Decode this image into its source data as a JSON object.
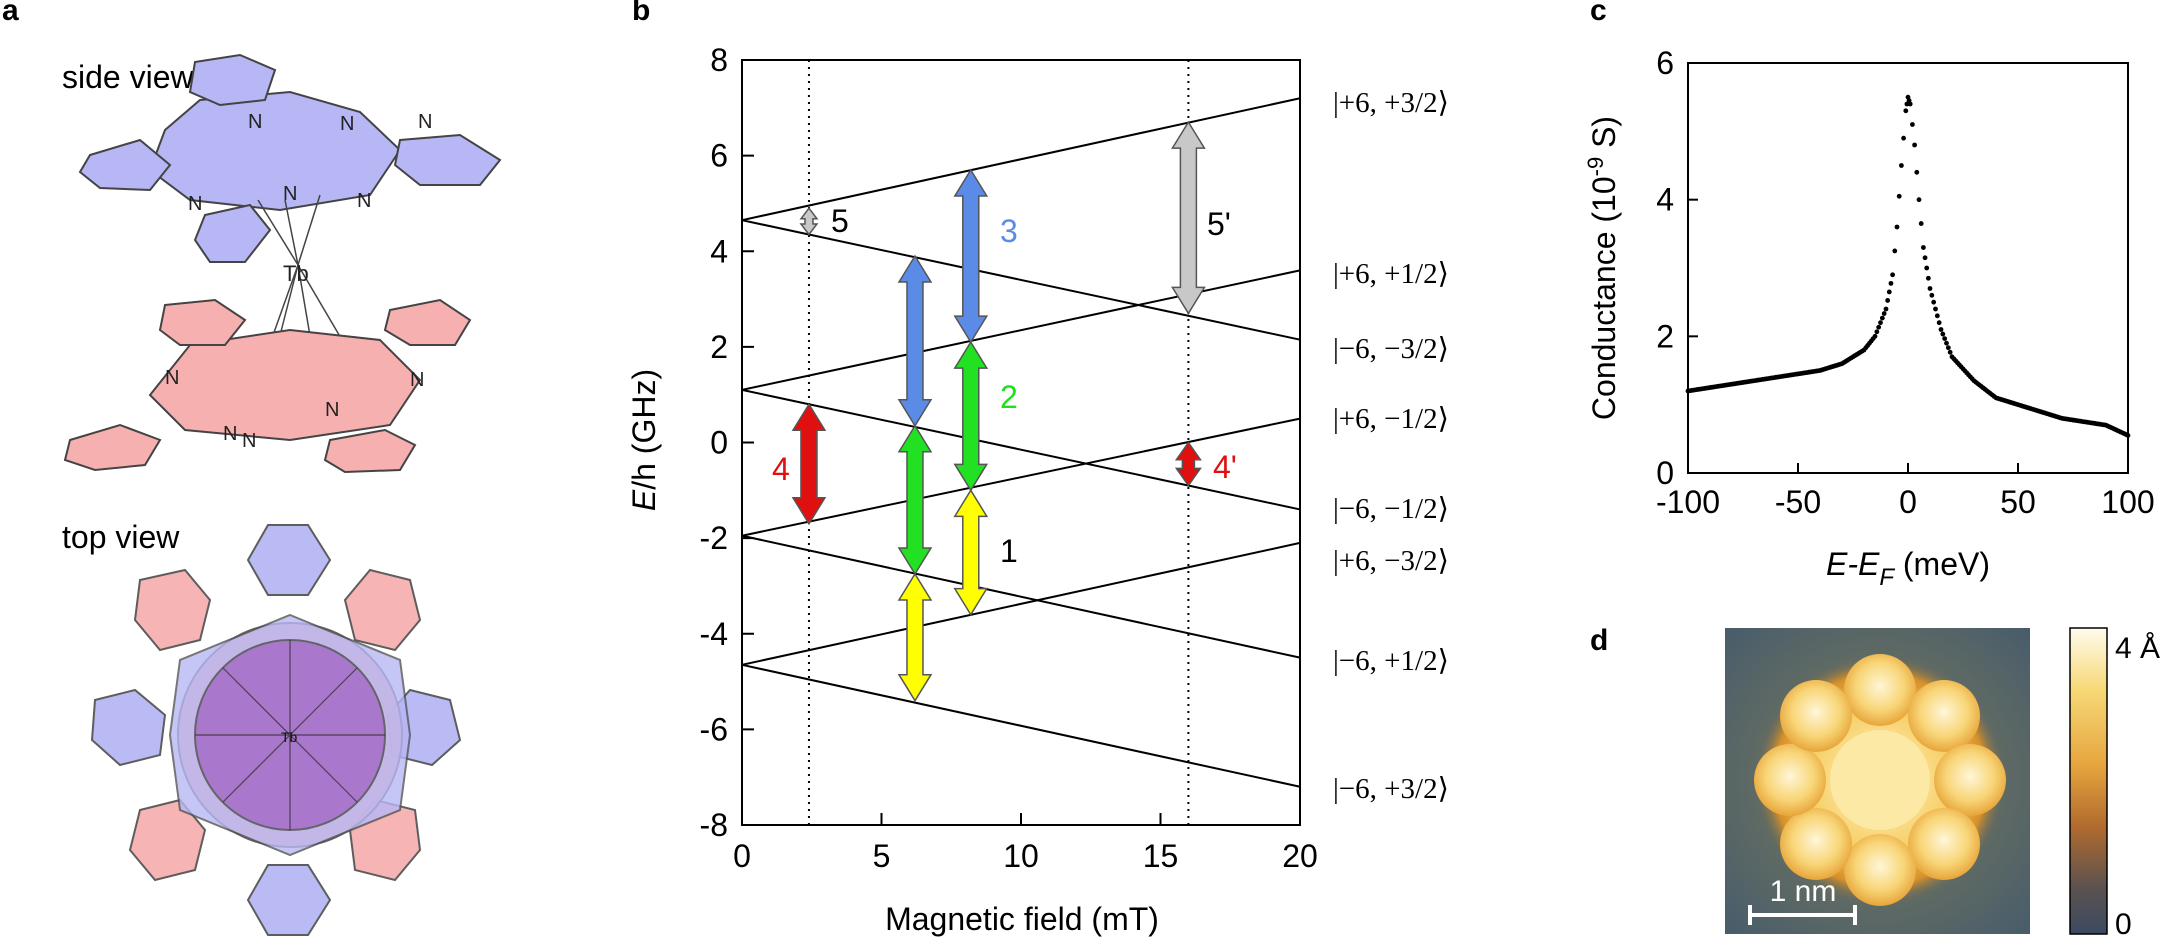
{
  "panel_labels": {
    "a": "a",
    "b": "b",
    "c": "c",
    "d": "d"
  },
  "panel_a": {
    "side_view_label": "side view",
    "top_view_label": "top view",
    "metal_label": "Tb",
    "nitrogen_label": "N",
    "colors": {
      "upper_ring": "#b7b7f5",
      "lower_ring": "#f7b0b0",
      "overlap": "#a56ec8"
    }
  },
  "panel_b": {
    "ylabel_italic": "E",
    "ylabel_rest": "/h (GHz)",
    "xlabel": "Magnetic field (mT)",
    "state_labels": [
      "|+6, +3/2⟩",
      "|+6, +1/2⟩",
      "|−6, −3/2⟩",
      "|+6, −1/2⟩",
      "|−6, −1/2⟩",
      "|+6, −3/2⟩",
      "|−6, +1/2⟩",
      "|−6, +3/2⟩"
    ],
    "transition_labels": [
      {
        "text": "1",
        "color": "#000000"
      },
      {
        "text": "2",
        "color": "#1ee01e"
      },
      {
        "text": "3",
        "color": "#5a8be6"
      },
      {
        "text": "4",
        "color": "#e01010"
      },
      {
        "text": "5",
        "color": "#000000"
      },
      {
        "text": "5'",
        "color": "#000000"
      },
      {
        "text": "4'",
        "color": "#e01010"
      }
    ]
  },
  "chart_data": [
    {
      "type": "line",
      "title": "",
      "xlabel": "Magnetic field (mT)",
      "ylabel": "E/h (GHz)",
      "xlim": [
        0,
        20
      ],
      "ylim": [
        -8,
        8
      ],
      "xticks": [
        0,
        5,
        10,
        15,
        20
      ],
      "yticks": [
        -8,
        -6,
        -4,
        -2,
        0,
        2,
        4,
        6,
        8
      ],
      "series": [
        {
          "name": "|+6, +3/2⟩",
          "x": [
            0,
            20
          ],
          "y": [
            4.65,
            7.2
          ]
        },
        {
          "name": "|+6, +1/2⟩",
          "x": [
            0,
            20
          ],
          "y": [
            1.1,
            3.6
          ]
        },
        {
          "name": "|−6, −3/2⟩",
          "x": [
            0,
            20
          ],
          "y": [
            4.65,
            2.15
          ]
        },
        {
          "name": "|+6, −1/2⟩",
          "x": [
            0,
            20
          ],
          "y": [
            -1.95,
            0.5
          ]
        },
        {
          "name": "|−6, −1/2⟩",
          "x": [
            0,
            20
          ],
          "y": [
            1.1,
            -1.4
          ]
        },
        {
          "name": "|+6, −3/2⟩",
          "x": [
            0,
            20
          ],
          "y": [
            -4.65,
            -2.1
          ]
        },
        {
          "name": "|−6, +1/2⟩",
          "x": [
            0,
            20
          ],
          "y": [
            -1.95,
            -4.5
          ]
        },
        {
          "name": "|−6, +3/2⟩",
          "x": [
            0,
            20
          ],
          "y": [
            -4.65,
            -7.2
          ]
        }
      ],
      "vertical_markers": [
        2.4,
        16.0
      ],
      "transitions": [
        {
          "label": "1",
          "x": 8.2,
          "y": [
            -1.0,
            -3.6
          ],
          "color": "#ffff00"
        },
        {
          "label": "1",
          "x": 6.2,
          "y": [
            -2.75,
            -5.4
          ],
          "color": "#ffff00"
        },
        {
          "label": "2",
          "x": 8.2,
          "y": [
            2.1,
            -1.0
          ],
          "color": "#22e022"
        },
        {
          "label": "2",
          "x": 6.2,
          "y": [
            0.35,
            -2.75
          ],
          "color": "#22e022"
        },
        {
          "label": "3",
          "x": 8.2,
          "y": [
            5.7,
            2.1
          ],
          "color": "#5a8be6"
        },
        {
          "label": "3",
          "x": 6.2,
          "y": [
            3.9,
            0.35
          ],
          "color": "#5a8be6"
        },
        {
          "label": "4",
          "x": 2.4,
          "y": [
            0.8,
            -1.7
          ],
          "color": "#e01010"
        },
        {
          "label": "4'",
          "x": 16.0,
          "y": [
            0.0,
            -0.9
          ],
          "color": "#e01010"
        },
        {
          "label": "5",
          "x": 2.4,
          "y": [
            4.9,
            4.35
          ],
          "color": "#c8c8c8"
        },
        {
          "label": "5'",
          "x": 16.0,
          "y": [
            6.7,
            2.7
          ],
          "color": "#c8c8c8"
        }
      ]
    },
    {
      "type": "scatter",
      "title": "",
      "xlabel": "E-EF (meV)",
      "ylabel": "Conductance (10^-9 S)",
      "xlim": [
        -100,
        100
      ],
      "ylim": [
        0,
        6
      ],
      "xticks": [
        -100,
        -50,
        0,
        50,
        100
      ],
      "yticks": [
        0,
        2,
        4,
        6
      ],
      "x": [
        -100,
        -90,
        -80,
        -70,
        -60,
        -50,
        -40,
        -30,
        -20,
        -15,
        -10,
        -7,
        -5,
        -3,
        -1,
        0,
        1,
        3,
        5,
        7,
        10,
        15,
        20,
        30,
        40,
        50,
        60,
        70,
        80,
        90,
        100
      ],
      "y": [
        1.2,
        1.25,
        1.3,
        1.35,
        1.4,
        1.45,
        1.5,
        1.6,
        1.8,
        2.0,
        2.4,
        2.9,
        3.6,
        4.5,
        5.3,
        5.5,
        5.4,
        4.8,
        4.0,
        3.3,
        2.7,
        2.1,
        1.7,
        1.35,
        1.1,
        1.0,
        0.9,
        0.8,
        0.75,
        0.7,
        0.55
      ]
    }
  ],
  "panel_c": {
    "ylabel_main": "Conductance (10",
    "ylabel_exp": "-9",
    "ylabel_end": " S)",
    "xlabel_main": "E-E",
    "xlabel_sub": "F",
    "xlabel_end": " (meV)"
  },
  "panel_d": {
    "scale_bar_label": "1 nm",
    "colorbar_max": "4 Å",
    "colorbar_min": "0"
  }
}
